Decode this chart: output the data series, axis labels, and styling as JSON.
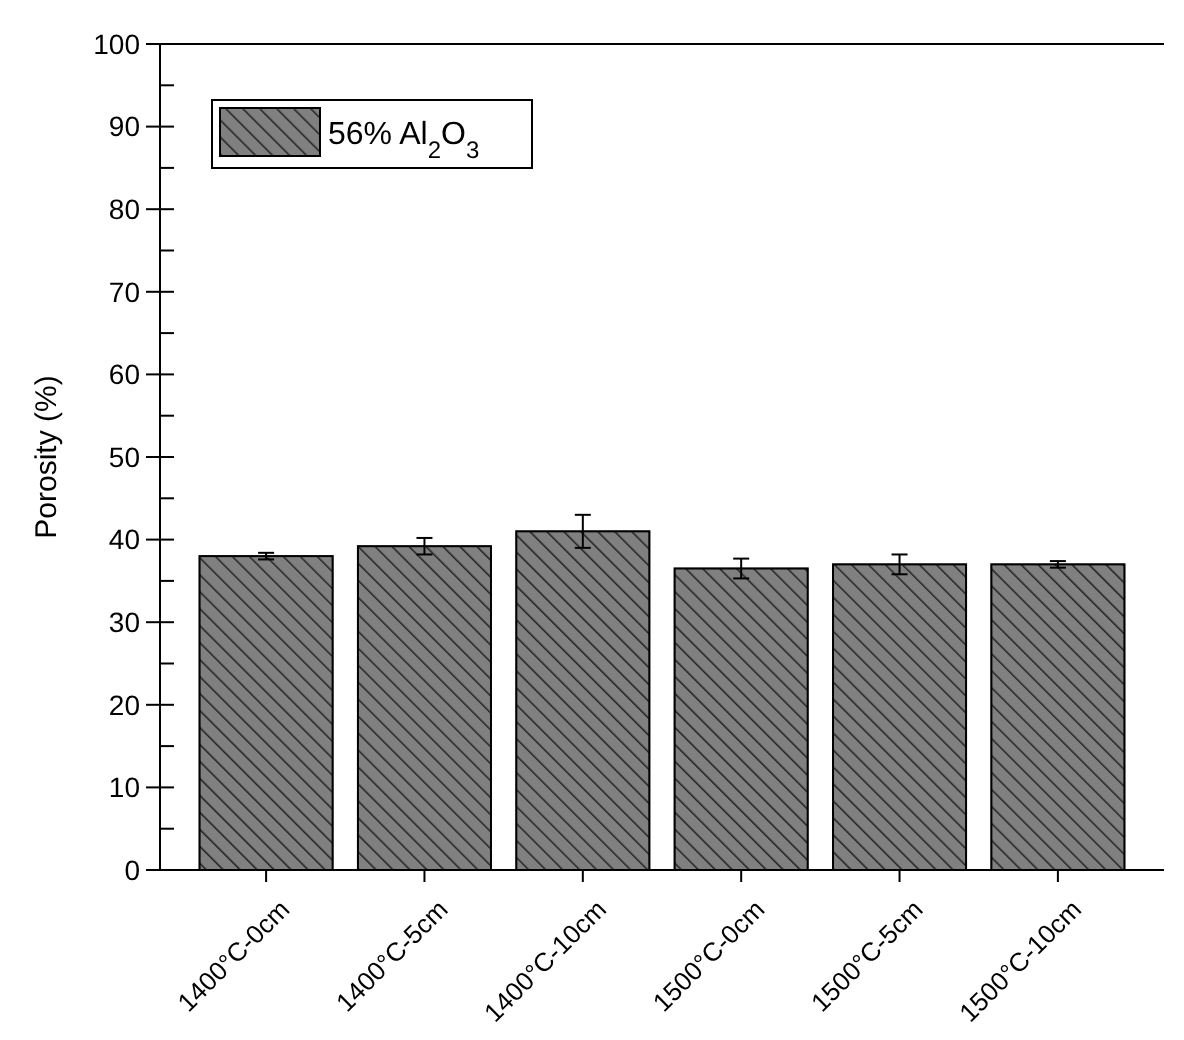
{
  "chart_data": {
    "type": "bar",
    "ylabel": "Porosity (%)",
    "categories": [
      "1400°C-0cm",
      "1400°C-5cm",
      "1400°C-10cm",
      "1500°C-0cm",
      "1500°C-5cm",
      "1500°C-10cm"
    ],
    "series": [
      {
        "name": "56% Al$_{2}$O$_{3}$",
        "color": "#808080",
        "values": [
          38,
          39.2,
          41,
          36.5,
          37,
          37
        ],
        "errors": [
          0.4,
          1,
          2,
          1.2,
          1.2,
          0.4
        ]
      }
    ],
    "ylim": [
      0,
      100
    ],
    "yticks": [
      0,
      {
        "value": 5,
        "label": null
      },
      10,
      {
        "value": 15,
        "label": null
      },
      20,
      {
        "value": 25,
        "label": null
      },
      30,
      {
        "value": 35,
        "label": null
      },
      40,
      {
        "value": 45,
        "label": null
      },
      50,
      {
        "value": 55,
        "label": null
      },
      60,
      {
        "value": 65,
        "label": null
      },
      70,
      {
        "value": 75,
        "label": null
      },
      80,
      {
        "value": 85,
        "label": null
      },
      90,
      {
        "value": 95,
        "label": null
      },
      100
    ],
    "grid": false,
    "legend": "top left"
  }
}
